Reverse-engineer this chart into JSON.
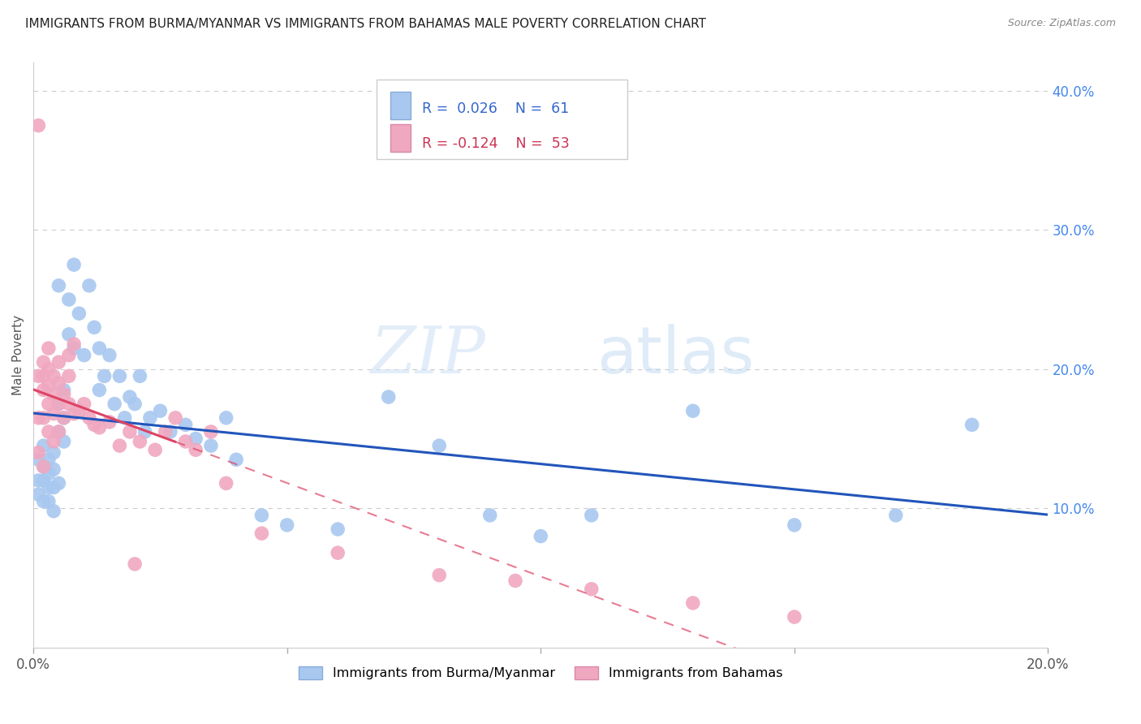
{
  "title": "IMMIGRANTS FROM BURMA/MYANMAR VS IMMIGRANTS FROM BAHAMAS MALE POVERTY CORRELATION CHART",
  "source": "Source: ZipAtlas.com",
  "ylabel_label": "Male Poverty",
  "legend_label1": "Immigrants from Burma/Myanmar",
  "legend_label2": "Immigrants from Bahamas",
  "R1": 0.026,
  "N1": 61,
  "R2": -0.124,
  "N2": 53,
  "xlim": [
    0.0,
    0.2
  ],
  "ylim": [
    0.0,
    0.42
  ],
  "xticks": [
    0.0,
    0.05,
    0.1,
    0.15,
    0.2
  ],
  "yticks": [
    0.1,
    0.2,
    0.3,
    0.4
  ],
  "xtick_labels": [
    "0.0%",
    "",
    "",
    "",
    "20.0%"
  ],
  "ytick_labels": [
    "10.0%",
    "20.0%",
    "30.0%",
    "40.0%"
  ],
  "color_blue": "#a8c8f0",
  "color_pink": "#f0a8c0",
  "color_blue_line": "#2255bb",
  "color_pink_line": "#dd4466",
  "watermark_zip": "ZIP",
  "watermark_atlas": "atlas",
  "blue_x": [
    0.001,
    0.001,
    0.001,
    0.002,
    0.002,
    0.002,
    0.002,
    0.003,
    0.003,
    0.003,
    0.003,
    0.004,
    0.004,
    0.004,
    0.004,
    0.005,
    0.005,
    0.005,
    0.005,
    0.006,
    0.006,
    0.006,
    0.007,
    0.007,
    0.008,
    0.008,
    0.009,
    0.01,
    0.011,
    0.012,
    0.013,
    0.013,
    0.014,
    0.015,
    0.016,
    0.017,
    0.018,
    0.019,
    0.02,
    0.021,
    0.022,
    0.023,
    0.025,
    0.027,
    0.03,
    0.032,
    0.035,
    0.038,
    0.04,
    0.045,
    0.05,
    0.06,
    0.07,
    0.08,
    0.09,
    0.1,
    0.11,
    0.13,
    0.15,
    0.17,
    0.185
  ],
  "blue_y": [
    0.135,
    0.12,
    0.11,
    0.145,
    0.13,
    0.12,
    0.105,
    0.135,
    0.125,
    0.115,
    0.105,
    0.14,
    0.128,
    0.115,
    0.098,
    0.26,
    0.175,
    0.155,
    0.118,
    0.185,
    0.165,
    0.148,
    0.25,
    0.225,
    0.275,
    0.215,
    0.24,
    0.21,
    0.26,
    0.23,
    0.185,
    0.215,
    0.195,
    0.21,
    0.175,
    0.195,
    0.165,
    0.18,
    0.175,
    0.195,
    0.155,
    0.165,
    0.17,
    0.155,
    0.16,
    0.15,
    0.145,
    0.165,
    0.135,
    0.095,
    0.088,
    0.085,
    0.18,
    0.145,
    0.095,
    0.08,
    0.095,
    0.17,
    0.088,
    0.095,
    0.16
  ],
  "pink_x": [
    0.001,
    0.001,
    0.001,
    0.001,
    0.002,
    0.002,
    0.002,
    0.002,
    0.002,
    0.003,
    0.003,
    0.003,
    0.003,
    0.003,
    0.004,
    0.004,
    0.004,
    0.004,
    0.005,
    0.005,
    0.005,
    0.005,
    0.006,
    0.006,
    0.007,
    0.007,
    0.007,
    0.008,
    0.008,
    0.009,
    0.01,
    0.011,
    0.012,
    0.013,
    0.015,
    0.017,
    0.019,
    0.021,
    0.024,
    0.026,
    0.028,
    0.03,
    0.032,
    0.035,
    0.038,
    0.045,
    0.06,
    0.08,
    0.095,
    0.11,
    0.13,
    0.15,
    0.02
  ],
  "pink_y": [
    0.375,
    0.195,
    0.165,
    0.14,
    0.205,
    0.195,
    0.185,
    0.165,
    0.13,
    0.215,
    0.2,
    0.188,
    0.175,
    0.155,
    0.195,
    0.182,
    0.168,
    0.148,
    0.205,
    0.19,
    0.175,
    0.155,
    0.182,
    0.165,
    0.21,
    0.195,
    0.175,
    0.218,
    0.168,
    0.17,
    0.175,
    0.165,
    0.16,
    0.158,
    0.162,
    0.145,
    0.155,
    0.148,
    0.142,
    0.155,
    0.165,
    0.148,
    0.142,
    0.155,
    0.118,
    0.082,
    0.068,
    0.052,
    0.048,
    0.042,
    0.032,
    0.022,
    0.06
  ]
}
